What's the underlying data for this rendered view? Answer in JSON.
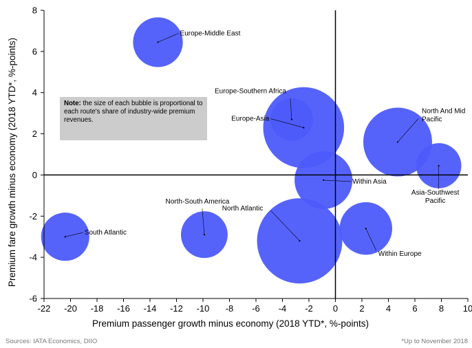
{
  "chart_data": {
    "type": "scatter",
    "xlabel": "Premium passenger growth minus economy (2018 YTD*, %-points)",
    "ylabel": "Premium fare growth minus economy (2018 YTD*, %-points)",
    "xlim": [
      -22,
      10
    ],
    "ylim": [
      -6,
      8
    ],
    "x_ticks": [
      -22,
      -20,
      -18,
      -16,
      -14,
      -12,
      -10,
      -8,
      -6,
      -4,
      -2,
      0,
      2,
      4,
      6,
      8,
      10
    ],
    "y_ticks": [
      -6,
      -4,
      -2,
      0,
      2,
      4,
      6,
      8
    ],
    "grid": false,
    "bubble_color": "#4d5bfb",
    "points": [
      {
        "label": "Europe-Middle East",
        "x": -13.4,
        "y": 6.45,
        "size": 0.34
      },
      {
        "label": "Europe-Southern Africa",
        "x": -3.3,
        "y": 2.7,
        "size": 0.25
      },
      {
        "label": "Europe-Asia",
        "x": -2.4,
        "y": 2.3,
        "size": 0.9
      },
      {
        "label": "North And Mid Pacific",
        "x": 4.7,
        "y": 1.6,
        "size": 0.65
      },
      {
        "label": "Asia-Southwest Pacific",
        "x": 7.8,
        "y": 0.45,
        "size": 0.28
      },
      {
        "label": "Within Asia",
        "x": -0.9,
        "y": -0.25,
        "size": 0.46
      },
      {
        "label": "North-South America",
        "x": -9.9,
        "y": -2.9,
        "size": 0.3
      },
      {
        "label": "North Atlantic",
        "x": -2.7,
        "y": -3.2,
        "size": 1.0
      },
      {
        "label": "South Atlantic",
        "x": -20.4,
        "y": -3.0,
        "size": 0.32
      },
      {
        "label": "Within Europe",
        "x": 2.3,
        "y": -2.6,
        "size": 0.38
      }
    ]
  },
  "note": {
    "bold": "Note:",
    "text": " the size of each bubble is proportional to each route's share of industry-wide premium revenues."
  },
  "footer": {
    "sources": "Sources: IATA Economics, DIIO",
    "footnote": "*Up to November 2018"
  }
}
